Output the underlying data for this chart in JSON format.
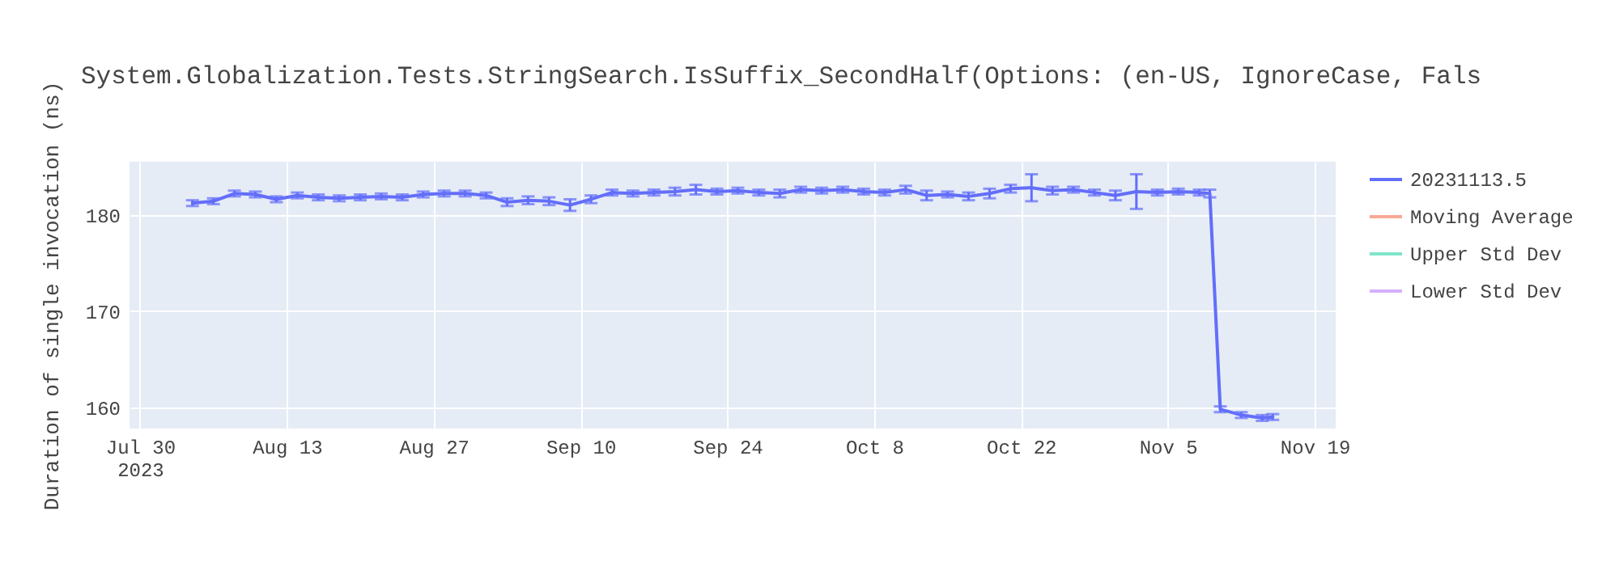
{
  "chart_data": {
    "type": "line",
    "title": "System.Globalization.Tests.StringSearch.IsSuffix_SecondHalf(Options: (en-US, IgnoreCase, Fals",
    "ylabel": "Duration of single invocation (ns)",
    "x": [
      "2023-08-04",
      "2023-08-06",
      "2023-08-08",
      "2023-08-10",
      "2023-08-12",
      "2023-08-14",
      "2023-08-16",
      "2023-08-18",
      "2023-08-20",
      "2023-08-22",
      "2023-08-24",
      "2023-08-26",
      "2023-08-28",
      "2023-08-30",
      "2023-09-01",
      "2023-09-03",
      "2023-09-05",
      "2023-09-07",
      "2023-09-09",
      "2023-09-11",
      "2023-09-13",
      "2023-09-15",
      "2023-09-17",
      "2023-09-19",
      "2023-09-21",
      "2023-09-23",
      "2023-09-25",
      "2023-09-27",
      "2023-09-29",
      "2023-10-01",
      "2023-10-03",
      "2023-10-05",
      "2023-10-07",
      "2023-10-09",
      "2023-10-11",
      "2023-10-13",
      "2023-10-15",
      "2023-10-17",
      "2023-10-19",
      "2023-10-21",
      "2023-10-23",
      "2023-10-25",
      "2023-10-27",
      "2023-10-29",
      "2023-10-31",
      "2023-11-02",
      "2023-11-04",
      "2023-11-06",
      "2023-11-08",
      "2023-11-09",
      "2023-11-10",
      "2023-11-12",
      "2023-11-14",
      "2023-11-15"
    ],
    "series": [
      {
        "name": "20231113.5",
        "color": "#636efa",
        "values": [
          181.2,
          181.4,
          182.2,
          182.1,
          181.6,
          182.0,
          181.8,
          181.7,
          181.8,
          181.9,
          181.8,
          182.1,
          182.2,
          182.2,
          182.0,
          181.3,
          181.5,
          181.4,
          181.0,
          181.6,
          182.3,
          182.2,
          182.3,
          182.4,
          182.6,
          182.4,
          182.5,
          182.3,
          182.2,
          182.6,
          182.5,
          182.6,
          182.4,
          182.3,
          182.6,
          182.0,
          182.1,
          181.9,
          182.2,
          182.7,
          182.8,
          182.5,
          182.6,
          182.3,
          182.0,
          182.4,
          182.3,
          182.4,
          182.3,
          182.2,
          159.8,
          159.2,
          158.9,
          159.0
        ],
        "errors": [
          0.3,
          0.3,
          0.3,
          0.3,
          0.3,
          0.3,
          0.3,
          0.3,
          0.3,
          0.3,
          0.3,
          0.3,
          0.3,
          0.3,
          0.3,
          0.4,
          0.4,
          0.4,
          0.6,
          0.4,
          0.3,
          0.3,
          0.3,
          0.4,
          0.5,
          0.3,
          0.3,
          0.3,
          0.4,
          0.3,
          0.3,
          0.3,
          0.3,
          0.3,
          0.4,
          0.5,
          0.3,
          0.4,
          0.5,
          0.4,
          1.4,
          0.4,
          0.3,
          0.3,
          0.5,
          1.8,
          0.3,
          0.3,
          0.3,
          0.4,
          0.3,
          0.3,
          0.3,
          0.3
        ]
      },
      {
        "name": "Moving Average",
        "color": "#f7a995",
        "values": [
          null,
          null,
          null,
          null,
          null,
          null,
          null,
          null,
          null,
          null,
          null,
          null,
          null,
          null,
          null,
          null,
          null,
          null,
          null,
          null,
          null,
          null,
          null,
          null,
          null,
          null,
          null,
          null,
          null,
          null,
          null,
          null,
          null,
          null,
          null,
          null,
          null,
          null,
          null,
          null,
          null,
          null,
          null,
          null,
          null,
          null,
          null,
          null,
          null,
          null,
          null,
          null,
          null,
          null
        ]
      },
      {
        "name": "Upper Std Dev",
        "color": "#7fe5ca",
        "values": [
          null,
          null,
          null,
          null,
          null,
          null,
          null,
          null,
          null,
          null,
          null,
          null,
          null,
          null,
          null,
          null,
          null,
          null,
          null,
          null,
          null,
          null,
          null,
          null,
          null,
          null,
          null,
          null,
          null,
          null,
          null,
          null,
          null,
          null,
          null,
          null,
          null,
          null,
          null,
          null,
          null,
          null,
          null,
          null,
          null,
          null,
          null,
          null,
          null,
          null,
          null,
          null,
          null,
          null
        ]
      },
      {
        "name": "Lower Std Dev",
        "color": "#d5b1fc",
        "values": [
          null,
          null,
          null,
          null,
          null,
          null,
          null,
          null,
          null,
          null,
          null,
          null,
          null,
          null,
          null,
          null,
          null,
          null,
          null,
          null,
          null,
          null,
          null,
          null,
          null,
          null,
          null,
          null,
          null,
          null,
          null,
          null,
          null,
          null,
          null,
          null,
          null,
          null,
          null,
          null,
          null,
          null,
          null,
          null,
          null,
          null,
          null,
          null,
          null,
          null,
          null,
          null,
          null,
          null
        ]
      }
    ],
    "xlim": [
      "2023-07-29",
      "2023-11-21"
    ],
    "xticks": [
      {
        "value": "2023-07-30",
        "label": "Jul 30\n2023"
      },
      {
        "value": "2023-08-13",
        "label": "Aug 13"
      },
      {
        "value": "2023-08-27",
        "label": "Aug 27"
      },
      {
        "value": "2023-09-10",
        "label": "Sep 10"
      },
      {
        "value": "2023-09-24",
        "label": "Sep 24"
      },
      {
        "value": "2023-10-08",
        "label": "Oct 8"
      },
      {
        "value": "2023-10-22",
        "label": "Oct 22"
      },
      {
        "value": "2023-11-05",
        "label": "Nov 5"
      },
      {
        "value": "2023-11-19",
        "label": "Nov 19"
      }
    ],
    "ylim": [
      157.8,
      185.5
    ],
    "yticks": [
      160,
      170,
      180
    ],
    "grid": true,
    "legend": "top right",
    "marker": "none",
    "line_style": "solid"
  }
}
